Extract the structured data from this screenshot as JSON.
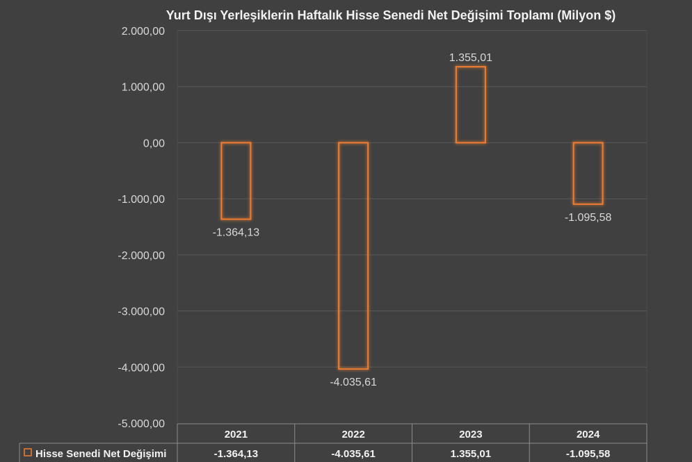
{
  "chart_data": {
    "type": "bar",
    "title": "Yurt Dışı Yerleşiklerin Haftalık Hisse Senedi Net Değişimi Toplamı (Milyon $)",
    "categories": [
      "2021",
      "2022",
      "2023",
      "2024"
    ],
    "series": [
      {
        "name": "Hisse Senedi Net Değişimi",
        "values": [
          -1364.13,
          -4035.61,
          1355.01,
          -1095.58
        ],
        "labels": [
          "-1.364,13",
          "-4.035,61",
          "1.355,01",
          "-1.095,58"
        ],
        "color": "#ed7d31"
      }
    ],
    "ylim": [
      -5000,
      2000
    ],
    "yticks": [
      2000,
      1000,
      0,
      -1000,
      -2000,
      -3000,
      -4000,
      -5000
    ],
    "ytick_labels": [
      "2.000,00",
      "1.000,00",
      "0,00",
      "-1.000,00",
      "-2.000,00",
      "-3.000,00",
      "-4.000,00",
      "-5.000,00"
    ],
    "grid": true,
    "legend": "data-table",
    "bar_style": "outline-glow"
  },
  "colors": {
    "background": "#404040",
    "gridline": "#595959",
    "bar_outline": "#ed7d31",
    "text": "#d9d9d9"
  }
}
